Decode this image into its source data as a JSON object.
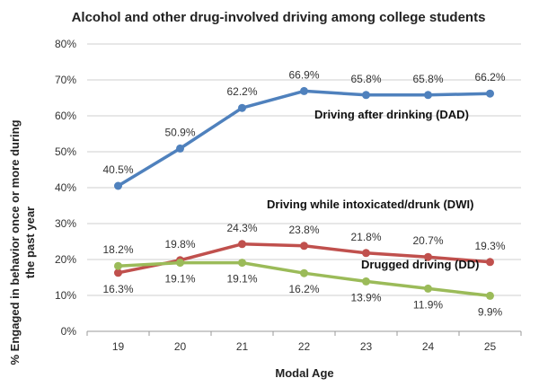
{
  "chart_data": {
    "type": "line",
    "title": "Alcohol and other drug-involved driving among college students",
    "xlabel": "Modal Age",
    "ylabel_line1": "% Engaged in behavior once or more during",
    "ylabel_line2": "the past year",
    "x": [
      19,
      20,
      21,
      22,
      23,
      24,
      25
    ],
    "ylim": [
      0,
      80
    ],
    "yticks": [
      "0%",
      "10%",
      "20%",
      "30%",
      "40%",
      "50%",
      "60%",
      "70%",
      "80%"
    ],
    "grid": "horizontal",
    "series": [
      {
        "name": "Driving after drinking (DAD)",
        "color": "#4f81bd",
        "values": [
          40.5,
          50.9,
          62.2,
          66.9,
          65.8,
          65.8,
          66.2
        ],
        "labels": [
          "40.5%",
          "50.9%",
          "62.2%",
          "66.9%",
          "65.8%",
          "65.8%",
          "66.2%"
        ]
      },
      {
        "name": "Driving while intoxicated/drunk (DWI)",
        "color": "#c0504d",
        "values": [
          16.3,
          19.8,
          24.3,
          23.8,
          21.8,
          20.7,
          19.3
        ],
        "labels": [
          "16.3%",
          "19.8%",
          "24.3%",
          "23.8%",
          "21.8%",
          "20.7%",
          "19.3%"
        ]
      },
      {
        "name": "Drugged driving (DD)",
        "color": "#9bbb59",
        "values": [
          18.2,
          19.1,
          19.1,
          16.2,
          13.9,
          11.9,
          9.9
        ],
        "labels": [
          "18.2%",
          "19.1%",
          "19.1%",
          "16.2%",
          "13.9%",
          "11.9%",
          "9.9%"
        ]
      }
    ]
  }
}
